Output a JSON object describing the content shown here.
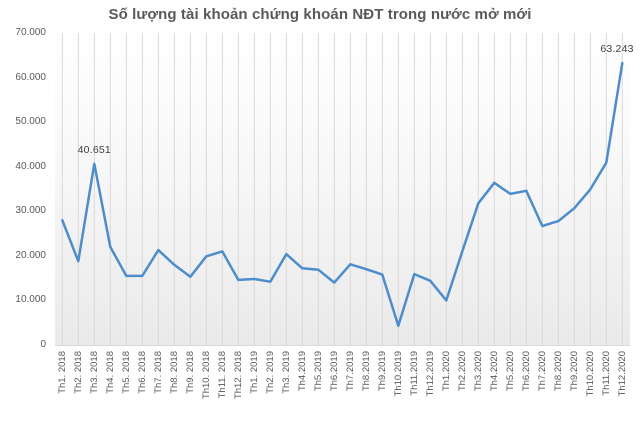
{
  "title": "Số lượng tài khoản chứng khoán NĐT trong nước mở mới",
  "chart_data": {
    "type": "line",
    "title": "Số lượng tài khoản chứng khoán NĐT trong nước mở mới",
    "xlabel": "",
    "ylabel": "",
    "ylim": [
      0,
      70000
    ],
    "grid": "vertical-only",
    "legend": "none",
    "line_color": "#4e8dcb",
    "gridline_color": "#d9d9d9",
    "categories": [
      "Th1. 2018",
      "Th2. 2018",
      "Th3. 2018",
      "Th4. 2018",
      "Th5. 2018",
      "Th6. 2018",
      "Th7. 2018",
      "Th8. 2018",
      "Th9. 2018",
      "Th10. 2018",
      "Th11. 2018",
      "Th12. 2018",
      "Th1. 2019",
      "Th2. 2019",
      "Th3. 2019",
      "Th4.2019",
      "Th5.2019",
      "Th6.2019",
      "Th7.2019",
      "Th8.2019",
      "Th9.2019",
      "Th10.2019",
      "Th11.2019",
      "Th12.2019",
      "Th1.2020",
      "Th2.2020",
      "Th3.2020",
      "Th4.2020",
      "Th5.2020",
      "Th6.2020",
      "Th7.2020",
      "Th8.2020",
      "Th9.2020",
      "Th10.2020",
      "Th11.2020",
      "Th12.2020"
    ],
    "values": [
      28000,
      18800,
      40651,
      22000,
      15500,
      15500,
      21300,
      18000,
      15300,
      19900,
      21000,
      14600,
      14800,
      14200,
      20400,
      17200,
      16900,
      14000,
      18100,
      17000,
      15800,
      4300,
      15900,
      14400,
      10000,
      21000,
      31800,
      36400,
      33900,
      34600,
      26700,
      27800,
      30700,
      34900,
      40900,
      63243
    ],
    "y_ticks": [
      {
        "label": "70.000",
        "value": 70000
      },
      {
        "label": "60.000",
        "value": 60000
      },
      {
        "label": "50.000",
        "value": 50000
      },
      {
        "label": "40.000",
        "value": 40000
      },
      {
        "label": "30.000",
        "value": 30000
      },
      {
        "label": "20.000",
        "value": 20000
      },
      {
        "label": "10.000",
        "value": 10000
      },
      {
        "label": "0",
        "value": 0
      }
    ],
    "annotations": [
      {
        "index": 2,
        "label": "40.651"
      },
      {
        "index": 35,
        "label": "63.243"
      }
    ]
  }
}
